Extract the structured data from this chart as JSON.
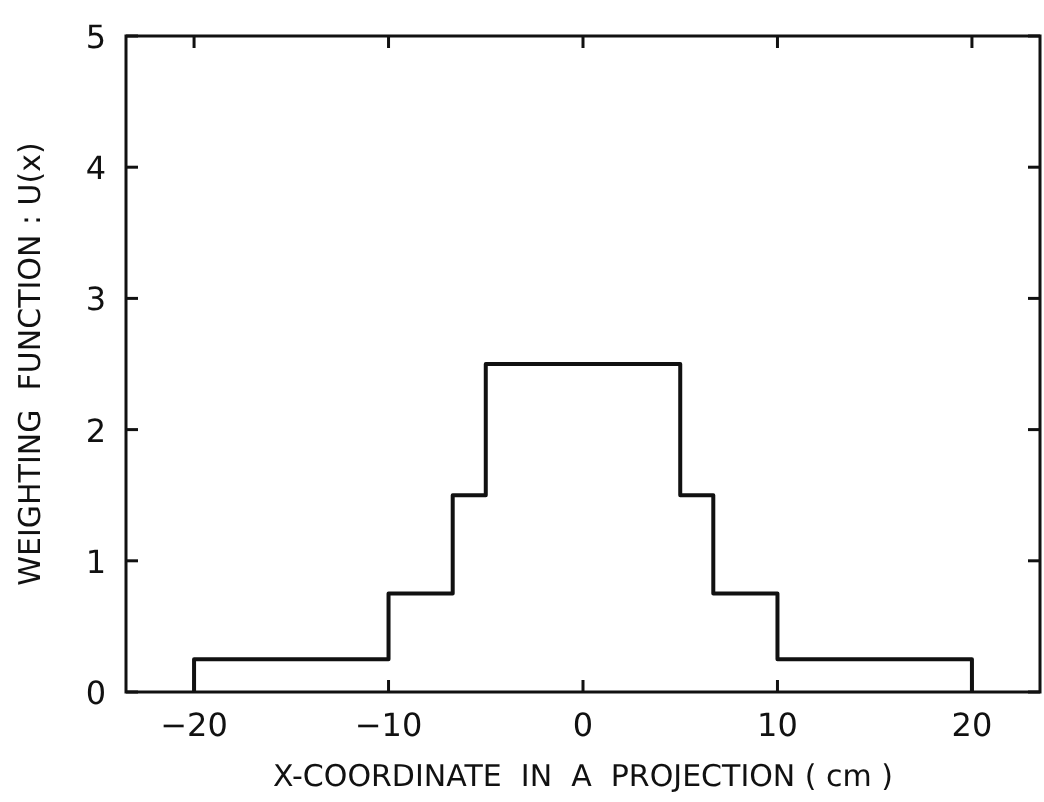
{
  "chart_data": {
    "type": "step",
    "xlabel": "X-COORDINATE  IN  A  PROJECTION ( cm )",
    "ylabel": "WEIGHTING  FUNCTION : U(x)",
    "x": [
      -20,
      -20,
      -10,
      -6.7,
      -5,
      5,
      6.7,
      10,
      20,
      20
    ],
    "series": [
      {
        "color": "#111111",
        "values": [
          0,
          0.25,
          0.75,
          1.5,
          2.5,
          1.5,
          0.75,
          0.25,
          0.25,
          0
        ]
      }
    ],
    "xlim": [
      -23.5,
      23.5
    ],
    "xticks": [
      {
        "value": -20,
        "label": "−20"
      },
      {
        "value": -10,
        "label": "−10"
      },
      0,
      10,
      20
    ],
    "ylim": [
      0,
      5
    ],
    "yticks": [
      0,
      1,
      2,
      3,
      4,
      5
    ],
    "grid": false,
    "marker": "none",
    "line_style": "solid"
  }
}
